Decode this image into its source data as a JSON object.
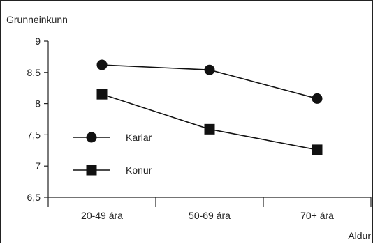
{
  "chart_data": {
    "type": "line",
    "ylabel": "Grunneinkunn",
    "xlabel": "Aldur",
    "categories": [
      "20-49 ára",
      "50-69 ára",
      "70+ ára"
    ],
    "ylim": [
      6.5,
      9
    ],
    "yticks": [
      6.5,
      7,
      7.5,
      8,
      8.5,
      9
    ],
    "ytick_labels": [
      "6,5",
      "7",
      "7,5",
      "8",
      "8,5",
      "9"
    ],
    "grid": false,
    "legend_position": "left",
    "series": [
      {
        "name": "Karlar",
        "marker": "circle",
        "values": [
          8.62,
          8.54,
          8.08
        ]
      },
      {
        "name": "Konur",
        "marker": "square",
        "values": [
          8.15,
          7.59,
          7.26
        ]
      }
    ]
  },
  "colors": {
    "line": "#111111",
    "axis": "#222222"
  }
}
